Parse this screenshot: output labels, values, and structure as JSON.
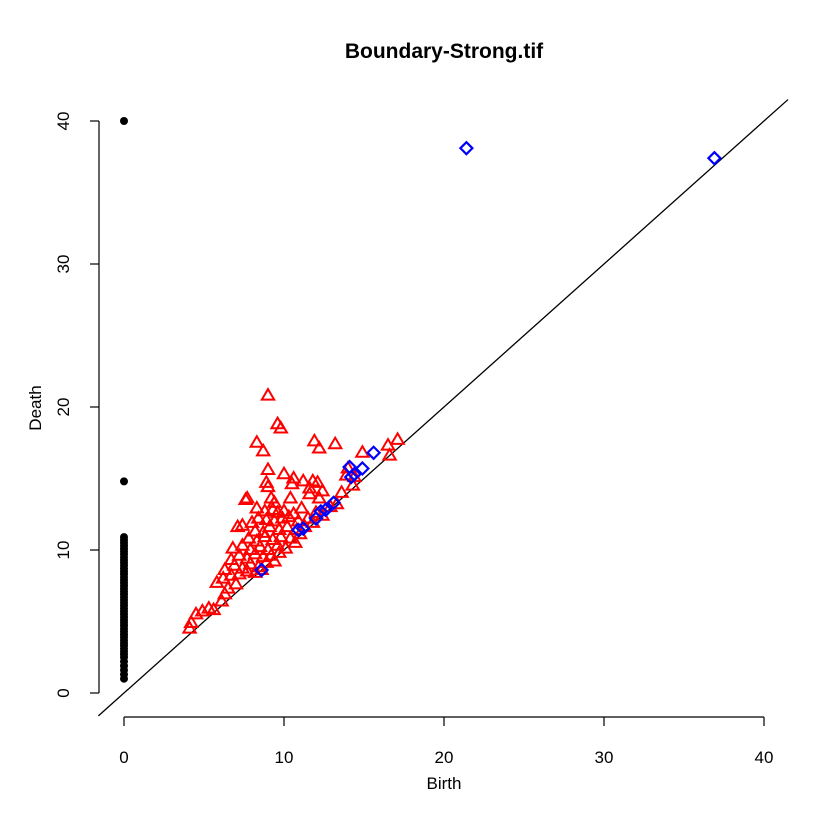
{
  "chart_data": {
    "type": "scatter",
    "title": "Boundary-Strong.tif",
    "xlabel": "Birth",
    "ylabel": "Death",
    "xlim": [
      0,
      40
    ],
    "ylim": [
      0,
      40
    ],
    "xticks": [
      0,
      10,
      20,
      30,
      40
    ],
    "yticks": [
      0,
      10,
      20,
      30,
      40
    ],
    "grid": false,
    "diagonal": true,
    "series": [
      {
        "dimension": 0,
        "marker": "filled-circle",
        "color": "#000000",
        "points": [
          [
            0,
            40.0
          ],
          [
            0,
            14.8
          ],
          [
            0,
            10.9
          ],
          [
            0,
            10.7
          ],
          [
            0,
            10.5
          ],
          [
            0,
            10.3
          ],
          [
            0,
            10.1
          ],
          [
            0,
            9.9
          ],
          [
            0,
            9.7
          ],
          [
            0,
            9.5
          ],
          [
            0,
            9.3
          ],
          [
            0,
            9.1
          ],
          [
            0,
            8.9
          ],
          [
            0,
            8.7
          ],
          [
            0,
            8.5
          ],
          [
            0,
            8.3
          ],
          [
            0,
            8.1
          ],
          [
            0,
            7.9
          ],
          [
            0,
            7.7
          ],
          [
            0,
            7.5
          ],
          [
            0,
            7.3
          ],
          [
            0,
            7.1
          ],
          [
            0,
            6.9
          ],
          [
            0,
            6.7
          ],
          [
            0,
            6.5
          ],
          [
            0,
            6.3
          ],
          [
            0,
            6.1
          ],
          [
            0,
            5.9
          ],
          [
            0,
            5.7
          ],
          [
            0,
            5.5
          ],
          [
            0,
            5.3
          ],
          [
            0,
            5.1
          ],
          [
            0,
            4.9
          ],
          [
            0,
            4.7
          ],
          [
            0,
            4.5
          ],
          [
            0,
            4.3
          ],
          [
            0,
            4.1
          ],
          [
            0,
            3.9
          ],
          [
            0,
            3.7
          ],
          [
            0,
            3.5
          ],
          [
            0,
            3.3
          ],
          [
            0,
            3.1
          ],
          [
            0,
            2.9
          ],
          [
            0,
            2.7
          ],
          [
            0,
            2.5
          ],
          [
            0,
            2.2
          ],
          [
            0,
            1.9
          ],
          [
            0,
            1.6
          ],
          [
            0,
            1.3
          ],
          [
            0,
            1.0
          ]
        ]
      },
      {
        "dimension": 1,
        "marker": "triangle",
        "color": "#ff0000",
        "points": [
          [
            9.0,
            20.8
          ],
          [
            9.6,
            18.8
          ],
          [
            9.8,
            18.5
          ],
          [
            8.3,
            17.5
          ],
          [
            8.7,
            16.9
          ],
          [
            11.9,
            17.6
          ],
          [
            12.2,
            17.1
          ],
          [
            13.2,
            17.4
          ],
          [
            16.5,
            17.3
          ],
          [
            17.1,
            17.7
          ],
          [
            16.6,
            16.6
          ],
          [
            14.9,
            16.8
          ],
          [
            9.0,
            15.6
          ],
          [
            10.0,
            15.3
          ],
          [
            10.6,
            15.0
          ],
          [
            14.4,
            15.1
          ],
          [
            14.0,
            15.7
          ],
          [
            8.9,
            14.7
          ],
          [
            9.0,
            14.4
          ],
          [
            10.5,
            14.6
          ],
          [
            11.2,
            14.8
          ],
          [
            11.8,
            14.8
          ],
          [
            12.1,
            14.7
          ],
          [
            11.6,
            14.3
          ],
          [
            12.4,
            14.1
          ],
          [
            7.7,
            13.6
          ],
          [
            7.6,
            13.5
          ],
          [
            9.2,
            13.6
          ],
          [
            9.4,
            13.3
          ],
          [
            10.4,
            13.6
          ],
          [
            11.6,
            13.9
          ],
          [
            12.2,
            13.6
          ],
          [
            13.6,
            14.0
          ],
          [
            14.3,
            14.5
          ],
          [
            8.3,
            12.9
          ],
          [
            8.8,
            12.7
          ],
          [
            9.3,
            12.8
          ],
          [
            9.6,
            12.6
          ],
          [
            10.0,
            12.7
          ],
          [
            10.6,
            12.5
          ],
          [
            11.1,
            12.9
          ],
          [
            12.0,
            12.6
          ],
          [
            12.9,
            13.0
          ],
          [
            13.3,
            13.2
          ],
          [
            7.1,
            11.6
          ],
          [
            7.4,
            11.7
          ],
          [
            8.0,
            11.9
          ],
          [
            8.4,
            12.2
          ],
          [
            8.9,
            12.1
          ],
          [
            9.4,
            12.0
          ],
          [
            9.9,
            12.2
          ],
          [
            10.3,
            12.3
          ],
          [
            10.9,
            12.0
          ],
          [
            11.5,
            12.2
          ],
          [
            12.4,
            12.4
          ],
          [
            8.2,
            11.3
          ],
          [
            8.7,
            11.2
          ],
          [
            9.1,
            11.6
          ],
          [
            9.7,
            11.4
          ],
          [
            10.2,
            11.6
          ],
          [
            10.8,
            11.4
          ],
          [
            11.3,
            11.6
          ],
          [
            11.8,
            11.9
          ],
          [
            7.8,
            10.8
          ],
          [
            8.3,
            10.6
          ],
          [
            8.8,
            10.9
          ],
          [
            9.3,
            10.7
          ],
          [
            9.8,
            10.9
          ],
          [
            10.4,
            10.8
          ],
          [
            11.0,
            11.1
          ],
          [
            6.8,
            10.1
          ],
          [
            7.4,
            10.3
          ],
          [
            7.9,
            10.0
          ],
          [
            8.5,
            10.2
          ],
          [
            9.0,
            10.0
          ],
          [
            9.6,
            10.3
          ],
          [
            10.1,
            10.1
          ],
          [
            10.7,
            10.5
          ],
          [
            6.7,
            9.3
          ],
          [
            7.2,
            9.6
          ],
          [
            7.7,
            9.4
          ],
          [
            8.2,
            9.7
          ],
          [
            8.7,
            9.5
          ],
          [
            9.2,
            9.6
          ],
          [
            9.7,
            9.8
          ],
          [
            6.3,
            8.6
          ],
          [
            6.9,
            8.9
          ],
          [
            7.4,
            8.7
          ],
          [
            7.9,
            9.0
          ],
          [
            8.4,
            8.8
          ],
          [
            8.9,
            9.1
          ],
          [
            9.4,
            9.2
          ],
          [
            6.2,
            8.0
          ],
          [
            6.7,
            8.2
          ],
          [
            7.2,
            8.3
          ],
          [
            7.7,
            8.5
          ],
          [
            8.2,
            8.4
          ],
          [
            8.6,
            8.6
          ],
          [
            5.8,
            7.7
          ],
          [
            6.5,
            7.3
          ],
          [
            6.3,
            6.9
          ],
          [
            6.1,
            6.4
          ],
          [
            5.3,
            5.9
          ],
          [
            4.9,
            5.7
          ],
          [
            4.5,
            5.5
          ],
          [
            4.2,
            4.9
          ],
          [
            4.1,
            4.5
          ],
          [
            5.6,
            5.8
          ],
          [
            7.0,
            7.6
          ],
          [
            13.9,
            15.2
          ]
        ]
      },
      {
        "dimension": 2,
        "marker": "diamond",
        "color": "#0000ff",
        "points": [
          [
            21.4,
            38.1
          ],
          [
            36.9,
            37.4
          ],
          [
            15.6,
            16.8
          ],
          [
            14.1,
            15.8
          ],
          [
            14.4,
            15.3
          ],
          [
            14.9,
            15.7
          ],
          [
            14.2,
            15.1
          ],
          [
            13.1,
            13.3
          ],
          [
            12.6,
            12.8
          ],
          [
            12.3,
            12.7
          ],
          [
            12.0,
            12.2
          ],
          [
            11.2,
            11.5
          ],
          [
            10.9,
            11.4
          ],
          [
            8.6,
            8.6
          ]
        ]
      }
    ]
  }
}
